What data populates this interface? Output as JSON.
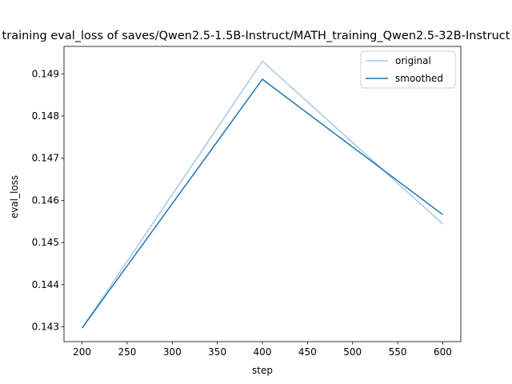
{
  "chart_data": {
    "type": "line",
    "title": "training eval_loss of saves/Qwen2.5-1.5B-Instruct/MATH_training_Qwen2.5-32B-Instruct",
    "xlabel": "step",
    "ylabel": "eval_loss",
    "xlim": [
      180,
      620
    ],
    "ylim": [
      0.14265,
      0.14965
    ],
    "xticks": [
      200,
      250,
      300,
      350,
      400,
      450,
      500,
      550,
      600
    ],
    "yticks": [
      0.143,
      0.144,
      0.145,
      0.146,
      0.147,
      0.148,
      0.149
    ],
    "x": [
      200,
      400,
      600
    ],
    "series": [
      {
        "name": "original",
        "values": [
          0.14297,
          0.1493,
          0.14544
        ],
        "color": "#a6c9e6"
      },
      {
        "name": "smoothed",
        "values": [
          0.14297,
          0.14887,
          0.14566
        ],
        "color": "#1f77b4"
      }
    ],
    "legend_position": "upper right",
    "grid": false
  }
}
